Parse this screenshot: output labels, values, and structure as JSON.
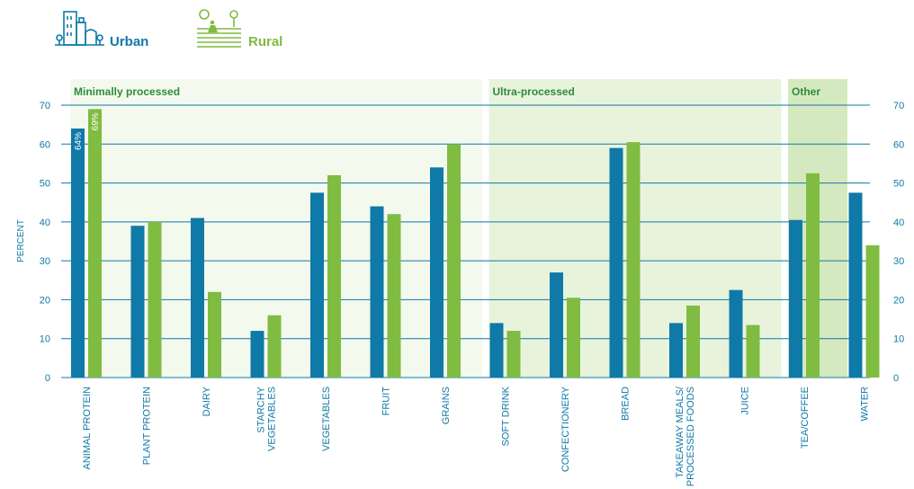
{
  "legend": {
    "urban": {
      "label": "Urban",
      "color": "#0f79a8",
      "icon": "city-buildings-icon"
    },
    "rural": {
      "label": "Rural",
      "color": "#7fbc41",
      "icon": "farm-field-icon"
    }
  },
  "chart_data": {
    "type": "bar",
    "ylabel": "PERCENT",
    "ylim": [
      0,
      70
    ],
    "yticks": [
      0,
      10,
      20,
      30,
      40,
      50,
      60,
      70
    ],
    "grid": true,
    "categories": [
      [
        "ANIMAL PROTEIN"
      ],
      [
        "PLANT PROTEIN"
      ],
      [
        "DAIRY"
      ],
      [
        "STARCHY",
        "VEGETABLES"
      ],
      [
        "VEGETABLES"
      ],
      [
        "FRUIT"
      ],
      [
        "GRAINS"
      ],
      [
        "SOFT DRINK"
      ],
      [
        "CONFECTIONERY"
      ],
      [
        "BREAD"
      ],
      [
        "TAKEAWAY MEALS/",
        "PROCESSED FOODS"
      ],
      [
        "JUICE"
      ],
      [
        "TEA/COFFEE"
      ],
      [
        "WATER"
      ]
    ],
    "series": [
      {
        "name": "Urban",
        "color": "#0f79a8",
        "values": [
          64,
          39,
          41,
          12,
          47.5,
          44,
          54,
          14,
          27,
          59,
          14,
          22.5,
          40.5,
          47.5
        ]
      },
      {
        "name": "Rural",
        "color": "#7fbc41",
        "values": [
          69,
          40,
          22,
          16,
          52,
          42,
          60,
          12,
          20.5,
          60.5,
          18.5,
          13.5,
          52.5,
          34
        ]
      }
    ],
    "data_labels": [
      {
        "series": 0,
        "category": 0,
        "text": "64%"
      },
      {
        "series": 1,
        "category": 0,
        "text": "69%"
      }
    ],
    "groups": [
      {
        "label": "Minimally processed",
        "start": 0,
        "end": 6,
        "fill": "#f4f9ee"
      },
      {
        "label": "Ultra-processed",
        "start": 7,
        "end": 11,
        "fill": "#e8f3dc"
      },
      {
        "label": "Other",
        "start": 12,
        "end": 12,
        "fill": "#d5e9c0"
      }
    ],
    "group_label_color": "#2e8b3d",
    "grid_color": "#0f79a8",
    "axis_text_color": "#0f79a8"
  }
}
